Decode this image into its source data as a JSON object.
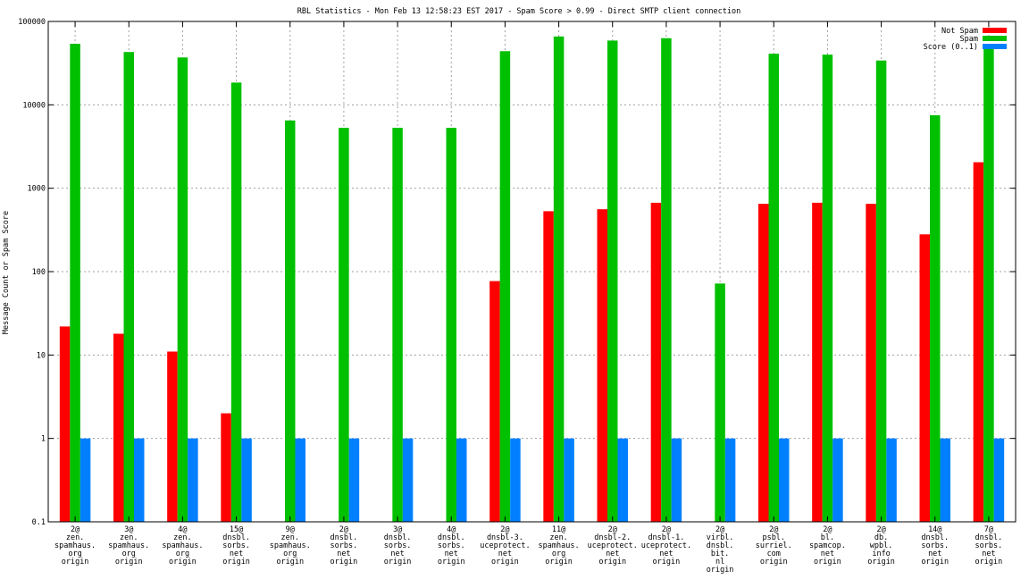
{
  "chart_data": {
    "type": "bar",
    "title": "RBL Statistics - Mon Feb 13 12:58:23 EST 2017 - Spam Score > 0.99 - Direct SMTP client connection",
    "xlabel": "",
    "ylabel": "Message Count or Spam Score",
    "yscale": "log",
    "ylim": [
      0.1,
      100000
    ],
    "yticks": [
      "0.1",
      "1",
      "10",
      "100",
      "1000",
      "10000",
      "100000"
    ],
    "grid": true,
    "legend_position": "top-right",
    "categories": [
      [
        "2@",
        "zen.",
        "spamhaus.",
        "org",
        "origin"
      ],
      [
        "3@",
        "zen.",
        "spamhaus.",
        "org",
        "origin"
      ],
      [
        "4@",
        "zen.",
        "spamhaus.",
        "org",
        "origin"
      ],
      [
        "15@",
        "dnsbl.",
        "sorbs.",
        "net",
        "origin"
      ],
      [
        "9@",
        "zen.",
        "spamhaus.",
        "org",
        "origin"
      ],
      [
        "2@",
        "dnsbl.",
        "sorbs.",
        "net",
        "origin"
      ],
      [
        "3@",
        "dnsbl.",
        "sorbs.",
        "net",
        "origin"
      ],
      [
        "4@",
        "dnsbl.",
        "sorbs.",
        "net",
        "origin"
      ],
      [
        "2@",
        "dnsbl-3.",
        "uceprotect.",
        "net",
        "origin"
      ],
      [
        "11@",
        "zen.",
        "spamhaus.",
        "org",
        "origin"
      ],
      [
        "2@",
        "dnsbl-2.",
        "uceprotect.",
        "net",
        "origin"
      ],
      [
        "2@",
        "dnsbl-1.",
        "uceprotect.",
        "net",
        "origin"
      ],
      [
        "2@",
        "virbl.",
        "dnsbl.",
        "bit.",
        "nl",
        "origin"
      ],
      [
        "2@",
        "psbl.",
        "surriel.",
        "com",
        "origin"
      ],
      [
        "2@",
        "bl.",
        "spamcop.",
        "net",
        "origin"
      ],
      [
        "2@",
        "db.",
        "wpbl.",
        "info",
        "origin"
      ],
      [
        "14@",
        "dnsbl.",
        "sorbs.",
        "net",
        "origin"
      ],
      [
        "7@",
        "dnsbl.",
        "sorbs.",
        "net",
        "origin"
      ]
    ],
    "series": [
      {
        "name": "Not Spam",
        "color": "#ff0000",
        "values": [
          22,
          18,
          11,
          2,
          null,
          null,
          null,
          null,
          77,
          530,
          560,
          670,
          null,
          650,
          670,
          650,
          280,
          2050
        ]
      },
      {
        "name": "Spam",
        "color": "#00c000",
        "values": [
          54000,
          43000,
          37000,
          18500,
          6500,
          5300,
          5300,
          5300,
          44000,
          66000,
          59000,
          63000,
          72,
          41000,
          40000,
          34000,
          7500,
          53000
        ]
      },
      {
        "name": "Score (0..1)",
        "color": "#0080ff",
        "values": [
          1,
          1,
          1,
          1,
          1,
          1,
          1,
          1,
          1,
          1,
          1,
          1,
          1,
          1,
          1,
          1,
          1,
          1
        ]
      }
    ]
  }
}
